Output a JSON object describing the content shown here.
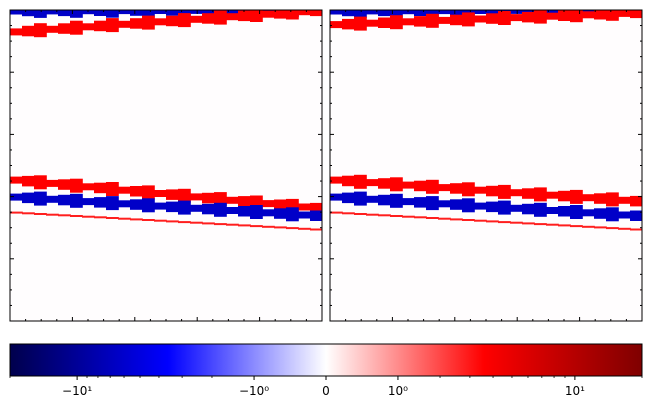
{
  "chart_data": [
    {
      "type": "heatmap",
      "panel": "left",
      "xticks_labeled": false,
      "yticks_labeled": false,
      "background_value": 0,
      "bands": [
        {
          "sign": "negative",
          "level": "strong",
          "at_left": 0.2,
          "at_right": 0.0
        },
        {
          "sign": "positive",
          "level": "strong",
          "at_left": 4.5,
          "at_right": 0.0
        },
        {
          "sign": "positive",
          "level": "strong",
          "at_left": 35.0,
          "at_right": 41.0
        },
        {
          "sign": "negative",
          "level": "strong",
          "at_left": 38.5,
          "at_right": 42.5
        },
        {
          "sign": "positive",
          "level": "medium",
          "at_left": 41.7,
          "at_right": 45.3
        }
      ]
    },
    {
      "type": "heatmap",
      "panel": "right",
      "xticks_labeled": false,
      "yticks_labeled": false,
      "background_value": 0,
      "bands": [
        {
          "sign": "negative",
          "level": "strong",
          "at_left": 0.2,
          "at_right": 0.0
        },
        {
          "sign": "positive",
          "level": "strong",
          "at_left": 3.0,
          "at_right": 0.5
        },
        {
          "sign": "positive",
          "level": "strong",
          "at_left": 35.0,
          "at_right": 39.5
        },
        {
          "sign": "negative",
          "level": "strong",
          "at_left": 38.5,
          "at_right": 42.5
        },
        {
          "sign": "positive",
          "level": "medium",
          "at_left": 41.7,
          "at_right": 45.3
        }
      ]
    }
  ],
  "colorbar": {
    "colormap": "seismic",
    "scale": "symlog",
    "range": [
      -20,
      20
    ],
    "colors": [
      "#00004c",
      "#0000ff",
      "#ffffff",
      "#ff0000",
      "#7f0000"
    ],
    "ticks": [
      {
        "value": -10,
        "label": "−10¹"
      },
      {
        "value": -1,
        "label": "−10⁰"
      },
      {
        "value": 0,
        "label": "0"
      },
      {
        "value": 1,
        "label": "10⁰"
      },
      {
        "value": 10,
        "label": "10¹"
      }
    ]
  }
}
